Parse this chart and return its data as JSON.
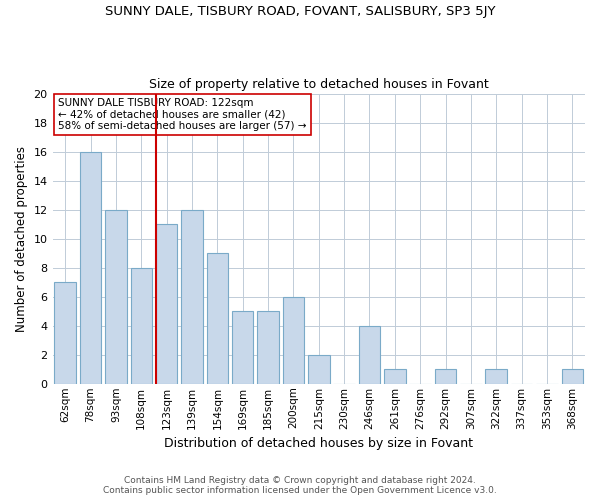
{
  "title": "SUNNY DALE, TISBURY ROAD, FOVANT, SALISBURY, SP3 5JY",
  "subtitle": "Size of property relative to detached houses in Fovant",
  "xlabel": "Distribution of detached houses by size in Fovant",
  "ylabel": "Number of detached properties",
  "bar_labels": [
    "62sqm",
    "78sqm",
    "93sqm",
    "108sqm",
    "123sqm",
    "139sqm",
    "154sqm",
    "169sqm",
    "185sqm",
    "200sqm",
    "215sqm",
    "230sqm",
    "246sqm",
    "261sqm",
    "276sqm",
    "292sqm",
    "307sqm",
    "322sqm",
    "337sqm",
    "353sqm",
    "368sqm"
  ],
  "bar_values": [
    7,
    16,
    12,
    8,
    11,
    12,
    9,
    5,
    5,
    6,
    2,
    0,
    4,
    1,
    0,
    1,
    0,
    1,
    0,
    0,
    1
  ],
  "bar_color": "#c8d8ea",
  "bar_edgecolor": "#7aaac8",
  "vline_color": "#cc0000",
  "ylim": [
    0,
    20
  ],
  "yticks": [
    0,
    2,
    4,
    6,
    8,
    10,
    12,
    14,
    16,
    18,
    20
  ],
  "annotation_title": "SUNNY DALE TISBURY ROAD: 122sqm",
  "annotation_line1": "← 42% of detached houses are smaller (42)",
  "annotation_line2": "58% of semi-detached houses are larger (57) →",
  "annotation_box_color": "#ffffff",
  "annotation_box_edgecolor": "#cc0000",
  "footer_line1": "Contains HM Land Registry data © Crown copyright and database right 2024.",
  "footer_line2": "Contains public sector information licensed under the Open Government Licence v3.0.",
  "background_color": "#ffffff",
  "grid_color": "#c0ccd8"
}
